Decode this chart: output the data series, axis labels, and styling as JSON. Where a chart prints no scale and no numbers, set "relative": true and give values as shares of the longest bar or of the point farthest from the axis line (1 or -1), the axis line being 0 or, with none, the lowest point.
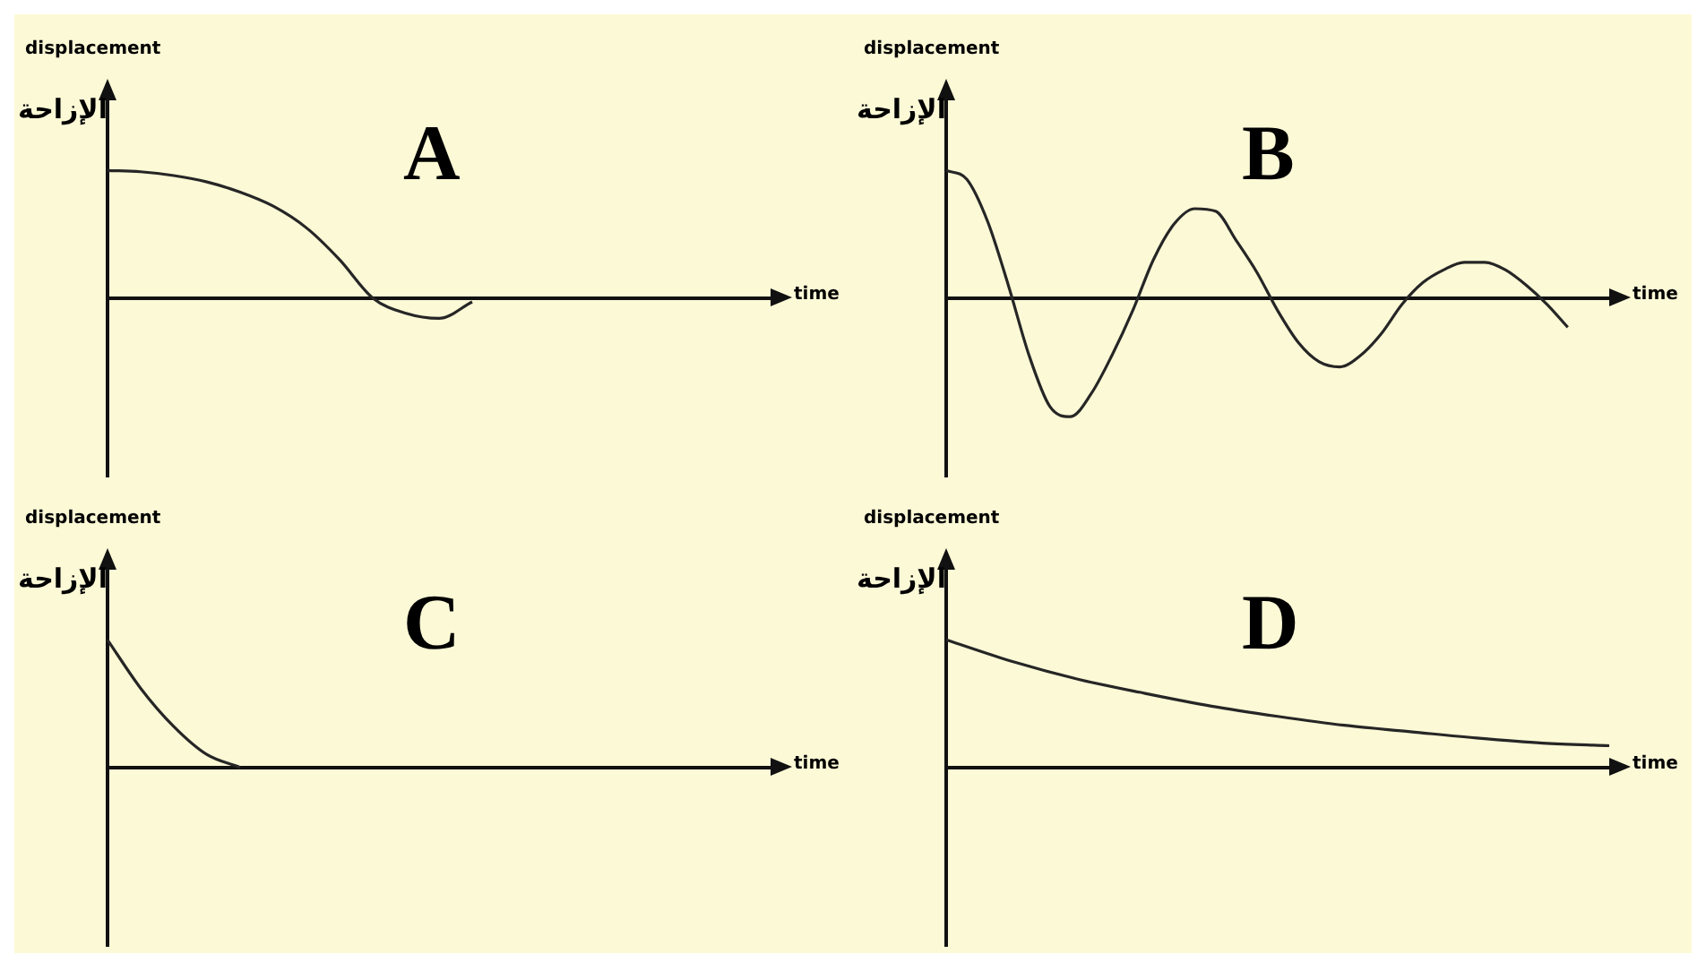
{
  "chart_data": [
    {
      "type": "line",
      "title": "A",
      "xlabel": "time",
      "ylabel": "displacement",
      "annotations": [
        "الإزاحة"
      ],
      "relative": true,
      "grid": false,
      "marker": "none",
      "color": "#262626",
      "categories": [
        null,
        null,
        null,
        null,
        null,
        null,
        null,
        null,
        null,
        null,
        null,
        null,
        null,
        null,
        null,
        null,
        null,
        null,
        null,
        null,
        null
      ],
      "values": [
        1.0,
        0.99,
        0.96,
        0.91,
        0.83,
        0.72,
        0.55,
        0.3,
        0.0,
        -0.12,
        -0.16,
        -0.03,
        null,
        null,
        null,
        null,
        null,
        null,
        null,
        null,
        null
      ]
    },
    {
      "type": "line",
      "title": "B",
      "xlabel": "time",
      "ylabel": "displacement",
      "annotations": [
        "الإزاحة"
      ],
      "relative": true,
      "grid": false,
      "marker": "none",
      "color": "#262626",
      "categories": [
        null,
        null,
        null,
        null,
        null,
        null,
        null,
        null,
        null,
        null,
        null,
        null,
        null,
        null,
        null,
        null,
        null,
        null,
        null,
        null,
        null,
        null,
        null,
        null,
        null,
        null,
        null,
        null,
        null,
        null,
        null,
        null,
        null
      ],
      "values": [
        1.0,
        0.93,
        0.6,
        0.1,
        -0.45,
        -0.85,
        -0.93,
        -0.75,
        -0.45,
        -0.1,
        0.3,
        0.58,
        0.7,
        0.68,
        0.45,
        0.2,
        -0.1,
        -0.35,
        -0.5,
        -0.54,
        -0.45,
        -0.28,
        -0.05,
        0.12,
        0.22,
        0.28,
        0.28,
        0.22,
        0.1,
        -0.05,
        -0.23,
        null,
        null
      ]
    },
    {
      "type": "line",
      "title": "C",
      "xlabel": "time",
      "ylabel": "displacement",
      "annotations": [
        "الإزاحة"
      ],
      "relative": true,
      "grid": false,
      "marker": "none",
      "color": "#262626",
      "categories": [
        null,
        null,
        null,
        null,
        null,
        null,
        null,
        null,
        null,
        null,
        null,
        null,
        null,
        null,
        null,
        null,
        null,
        null,
        null,
        null,
        null
      ],
      "values": [
        1.0,
        0.62,
        0.32,
        0.1,
        0.0,
        null,
        null,
        null,
        null,
        null,
        null,
        null,
        null,
        null,
        null,
        null,
        null,
        null,
        null,
        null,
        null
      ]
    },
    {
      "type": "line",
      "title": "D",
      "xlabel": "time",
      "ylabel": "displacement",
      "annotations": [
        "الإزاحة"
      ],
      "relative": true,
      "grid": false,
      "marker": "none",
      "color": "#262626",
      "categories": [
        null,
        null,
        null,
        null,
        null,
        null,
        null,
        null,
        null,
        null,
        null
      ],
      "values": [
        1.0,
        0.83,
        0.69,
        0.58,
        0.48,
        0.4,
        0.33,
        0.28,
        0.23,
        0.19,
        0.17
      ]
    }
  ]
}
